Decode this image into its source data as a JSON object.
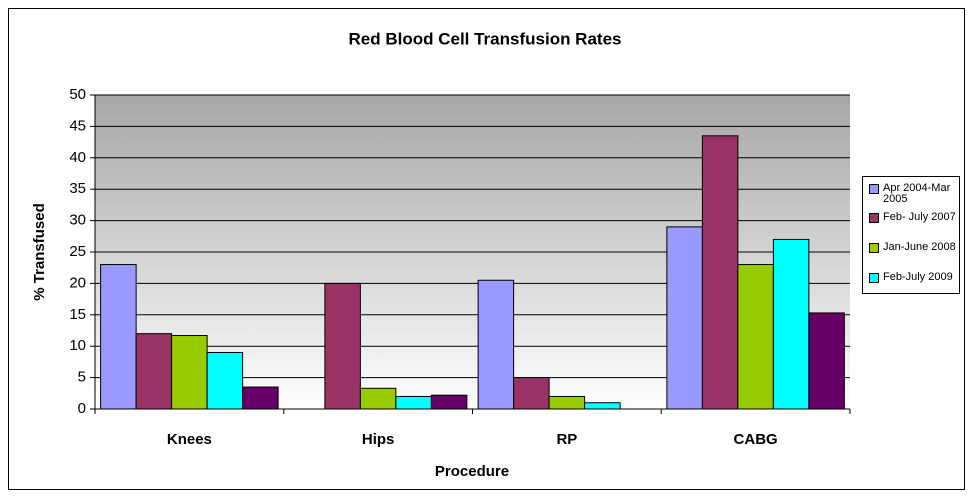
{
  "chart_data": {
    "type": "bar",
    "title": "Red Blood Cell Transfusion Rates",
    "x_label": "Procedure",
    "y_label": "% Transfused",
    "categories": [
      "Knees",
      "Hips",
      "RP",
      "CABG"
    ],
    "series": [
      {
        "name": "Apr 2004-Mar 2005",
        "color": "#9999ff",
        "values": [
          23,
          null,
          20.5,
          29
        ]
      },
      {
        "name": "Feb- July 2007",
        "color": "#993366",
        "values": [
          12,
          20,
          5,
          43.5
        ]
      },
      {
        "name": "Jan-June 2008",
        "color": "#99cc00",
        "values": [
          11.7,
          3.3,
          2,
          23
        ]
      },
      {
        "name": "Feb-July 2009",
        "color": "#00ffff",
        "values": [
          9,
          2,
          1,
          27
        ]
      },
      {
        "color": "#660066",
        "values": [
          3.5,
          2.2,
          null,
          15.3
        ]
      }
    ],
    "ylim": [
      0,
      50
    ],
    "yticks": [
      0,
      5,
      10,
      15,
      20,
      25,
      30,
      35,
      40,
      45,
      50
    ],
    "grid": true,
    "legend": "right"
  }
}
